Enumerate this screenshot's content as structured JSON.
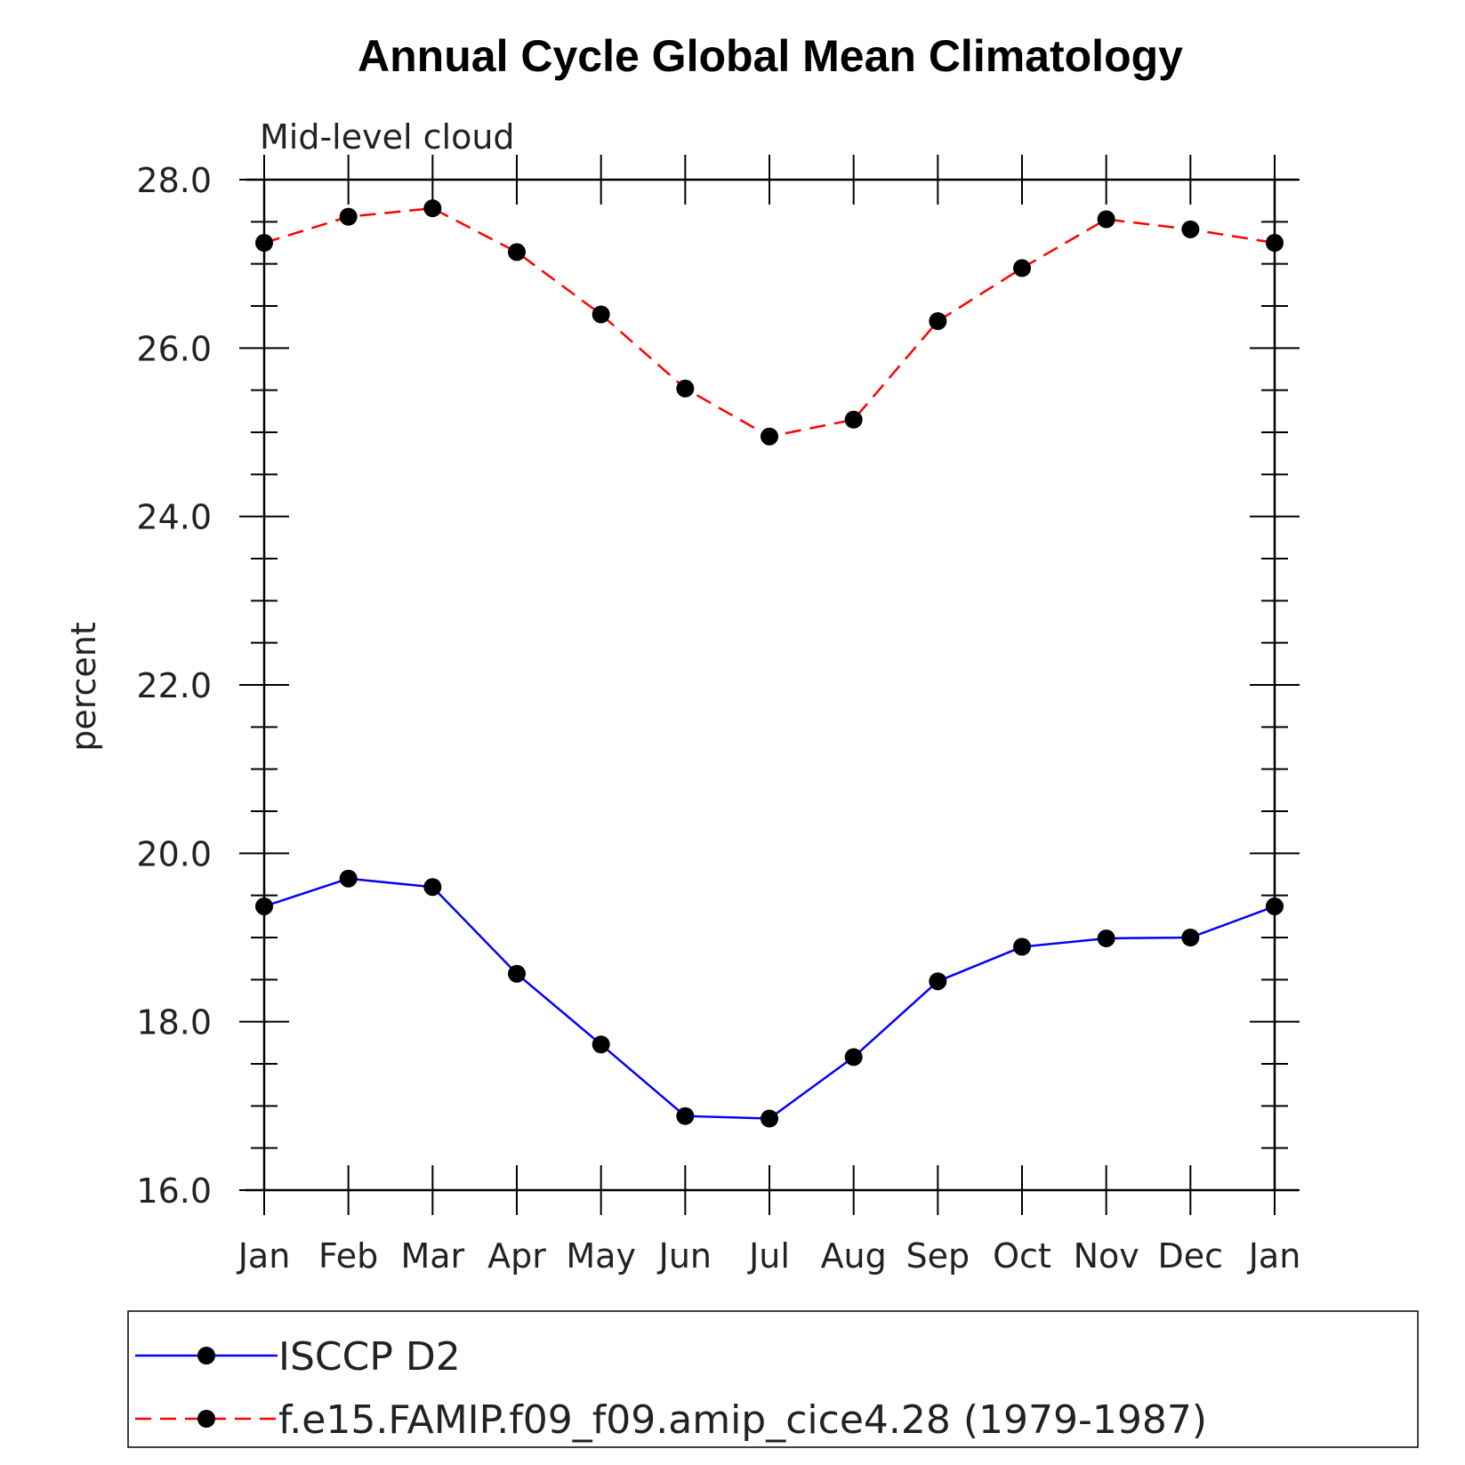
{
  "chart_data": {
    "type": "line",
    "title": "Annual Cycle Global Mean Climatology",
    "subtitle": "Mid-level cloud",
    "ylabel": "percent",
    "xlabel": "",
    "categories": [
      "Jan",
      "Feb",
      "Mar",
      "Apr",
      "May",
      "Jun",
      "Jul",
      "Aug",
      "Sep",
      "Oct",
      "Nov",
      "Dec",
      "Jan"
    ],
    "ylim": [
      16.0,
      28.0
    ],
    "yticks": [
      "16.0",
      "18.0",
      "20.0",
      "22.0",
      "24.0",
      "26.0",
      "28.0"
    ],
    "grid": false,
    "legend_position": "bottom",
    "series": [
      {
        "name": "ISCCP D2",
        "color": "#0000ff",
        "line_style": "solid",
        "marker": "filled-circle",
        "values": [
          19.37,
          19.7,
          19.6,
          18.57,
          17.73,
          16.88,
          16.85,
          17.58,
          18.48,
          18.89,
          18.99,
          19.0,
          19.37
        ]
      },
      {
        "name": "f.e15.FAMIP.f09_f09.amip_cice4.28 (1979-1987)",
        "color": "#ff0000",
        "line_style": "dashed",
        "marker": "filled-circle",
        "values": [
          27.25,
          27.56,
          27.66,
          27.14,
          26.4,
          25.52,
          24.95,
          25.15,
          26.32,
          26.95,
          27.53,
          27.41,
          27.25
        ]
      }
    ]
  }
}
